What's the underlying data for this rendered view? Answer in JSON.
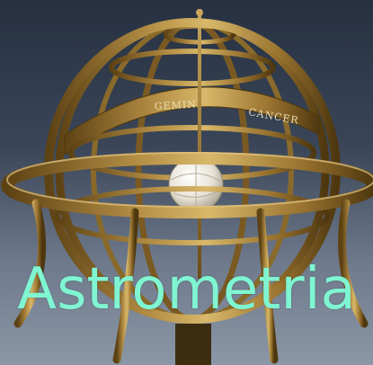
{
  "title_text": "Astrometria",
  "band_labels": [
    "GEMINI",
    "CANCER"
  ],
  "colors": {
    "title": "#7ff5d2",
    "brass": "#a8833a",
    "brass_dark": "#5d4214",
    "brass_light": "#d8b86a"
  }
}
